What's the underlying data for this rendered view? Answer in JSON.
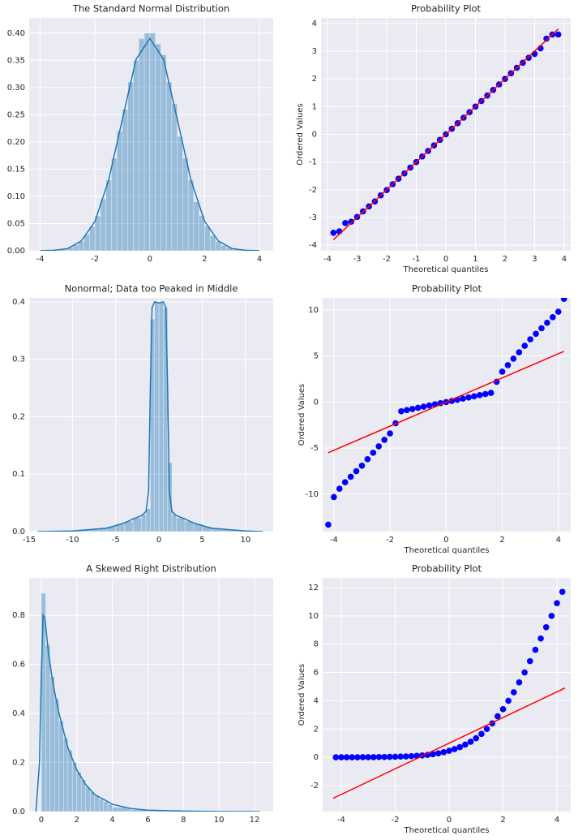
{
  "chart_data": [
    {
      "type": "histogram",
      "title": "The Standard Normal Distribution",
      "bins": [
        -3.6,
        -3.4,
        -3.2,
        -3.0,
        -2.8,
        -2.6,
        -2.4,
        -2.2,
        -2.0,
        -1.8,
        -1.6,
        -1.4,
        -1.2,
        -1.0,
        -0.8,
        -0.6,
        -0.4,
        -0.2,
        0,
        0.2,
        0.4,
        0.6,
        0.8,
        1.0,
        1.2,
        1.4,
        1.6,
        1.8,
        2.0,
        2.2,
        2.4,
        2.6,
        2.8,
        3.0,
        3.2,
        3.4,
        3.6
      ],
      "values": [
        0.001,
        0.002,
        0.003,
        0.006,
        0.011,
        0.017,
        0.03,
        0.045,
        0.064,
        0.095,
        0.13,
        0.17,
        0.22,
        0.26,
        0.31,
        0.35,
        0.39,
        0.4,
        0.4,
        0.38,
        0.36,
        0.31,
        0.27,
        0.21,
        0.17,
        0.13,
        0.09,
        0.065,
        0.045,
        0.028,
        0.017,
        0.01,
        0.006,
        0.003,
        0.002,
        0.001
      ],
      "color": "#1f77b4",
      "kde": {
        "x": [
          -4,
          -3.5,
          -3,
          -2.5,
          -2,
          -1.5,
          -1,
          -0.5,
          0,
          0.5,
          1,
          1.5,
          2,
          2.5,
          3,
          3.5,
          4
        ],
        "values": [
          0.0001,
          0.0009,
          0.004,
          0.018,
          0.054,
          0.13,
          0.242,
          0.352,
          0.39,
          0.352,
          0.242,
          0.13,
          0.054,
          0.018,
          0.004,
          0.0009,
          0.0001
        ],
        "color": "#1f77b4"
      },
      "xlim": [
        -4.4,
        4.5
      ],
      "ylim": [
        0,
        0.428
      ],
      "xticks": [
        -4,
        -2,
        0,
        2,
        4
      ],
      "yticks": [
        {
          "value": 0,
          "label": "0.00"
        },
        {
          "value": 0.05,
          "label": "0.05"
        },
        {
          "value": 0.1,
          "label": "0.10"
        },
        {
          "value": 0.15,
          "label": "0.15"
        },
        {
          "value": 0.2,
          "label": "0.20"
        },
        {
          "value": 0.25,
          "label": "0.25"
        },
        {
          "value": 0.3,
          "label": "0.30"
        },
        {
          "value": 0.35,
          "label": "0.35"
        },
        {
          "value": 0.4,
          "label": "0.40"
        }
      ],
      "grid": true
    },
    {
      "type": "scatter",
      "title": "Probability Plot",
      "xlabel": "Theoretical quantiles",
      "ylabel": "Ordered Values",
      "x": [
        -3.8,
        -3.6,
        -3.4,
        -3.2,
        -3.0,
        -2.8,
        -2.6,
        -2.4,
        -2.2,
        -2.0,
        -1.8,
        -1.6,
        -1.4,
        -1.2,
        -1.0,
        -0.8,
        -0.6,
        -0.4,
        -0.2,
        0,
        0.2,
        0.4,
        0.6,
        0.8,
        1.0,
        1.2,
        1.4,
        1.6,
        1.8,
        2.0,
        2.2,
        2.4,
        2.6,
        2.8,
        3.0,
        3.2,
        3.4,
        3.6,
        3.8
      ],
      "values": [
        -3.55,
        -3.5,
        -3.2,
        -3.15,
        -2.98,
        -2.78,
        -2.6,
        -2.42,
        -2.2,
        -2.01,
        -1.8,
        -1.6,
        -1.41,
        -1.2,
        -1.0,
        -0.8,
        -0.6,
        -0.4,
        -0.2,
        0,
        0.2,
        0.4,
        0.6,
        0.8,
        1.0,
        1.2,
        1.4,
        1.6,
        1.8,
        2.0,
        2.2,
        2.4,
        2.58,
        2.76,
        2.9,
        3.1,
        3.45,
        3.6,
        3.6
      ],
      "color": "#0000ff",
      "fit_line": {
        "x": [
          -3.8,
          3.8
        ],
        "values": [
          -3.8,
          3.8
        ],
        "color": "#ff0000"
      },
      "xlim": [
        -4.22,
        4.22
      ],
      "ylim": [
        -4.2,
        4.2
      ],
      "xticks": [
        -4,
        -3,
        -2,
        -1,
        0,
        1,
        2,
        3,
        4
      ],
      "yticks": [
        -4,
        -3,
        -2,
        -1,
        0,
        1,
        2,
        3,
        4
      ],
      "grid": true
    },
    {
      "type": "histogram",
      "title": "Nonormal; Data too Peaked in Middle",
      "bins": [
        -14,
        -13,
        -12,
        -11,
        -10,
        -9,
        -8,
        -7,
        -6,
        -5,
        -4,
        -3,
        -2,
        -1.5,
        -1,
        -0.5,
        0,
        0.5,
        1,
        1.5,
        2,
        3,
        4,
        5,
        6,
        7,
        8,
        9,
        10,
        11,
        12
      ],
      "values": [
        0.0005,
        0.0005,
        0.001,
        0.001,
        0.002,
        0.003,
        0.004,
        0.006,
        0.009,
        0.013,
        0.018,
        0.024,
        0.03,
        0.04,
        0.37,
        0.4,
        0.4,
        0.39,
        0.12,
        0.03,
        0.024,
        0.018,
        0.013,
        0.009,
        0.006,
        0.004,
        0.003,
        0.002,
        0.001,
        0.0005
      ],
      "color": "#1f77b4",
      "kde": {
        "x": [
          -14,
          -10,
          -6,
          -4,
          -3,
          -2,
          -1.5,
          -1.2,
          -1,
          -0.8,
          -0.5,
          0,
          0.5,
          0.8,
          1,
          1.2,
          1.5,
          2,
          3,
          4,
          6,
          10,
          12
        ],
        "values": [
          0,
          0.001,
          0.006,
          0.015,
          0.022,
          0.028,
          0.035,
          0.07,
          0.25,
          0.39,
          0.4,
          0.398,
          0.4,
          0.39,
          0.25,
          0.07,
          0.035,
          0.028,
          0.022,
          0.015,
          0.006,
          0.001,
          0
        ],
        "color": "#1f77b4"
      },
      "xlim": [
        -15,
        13.2
      ],
      "ylim": [
        0,
        0.407
      ],
      "xticks": [
        -15,
        -10,
        -5,
        0,
        5,
        10
      ],
      "yticks": [
        {
          "value": 0,
          "label": "0.0"
        },
        {
          "value": 0.1,
          "label": "0.1"
        },
        {
          "value": 0.2,
          "label": "0.2"
        },
        {
          "value": 0.3,
          "label": "0.3"
        },
        {
          "value": 0.4,
          "label": "0.4"
        }
      ],
      "grid": true
    },
    {
      "type": "scatter",
      "title": "Probability Plot",
      "xlabel": "Theoretical quantiles",
      "ylabel": "Ordered Values",
      "x": [
        -4.2,
        -4.0,
        -3.8,
        -3.6,
        -3.4,
        -3.2,
        -3.0,
        -2.8,
        -2.6,
        -2.4,
        -2.2,
        -2.0,
        -1.8,
        -1.6,
        -1.4,
        -1.2,
        -1.0,
        -0.8,
        -0.6,
        -0.4,
        -0.2,
        0,
        0.2,
        0.4,
        0.6,
        0.8,
        1.0,
        1.2,
        1.4,
        1.6,
        1.8,
        2.0,
        2.2,
        2.4,
        2.6,
        2.8,
        3.0,
        3.2,
        3.4,
        3.6,
        3.8,
        4.0,
        4.2
      ],
      "values": [
        -13.3,
        -10.3,
        -9.4,
        -8.7,
        -8.1,
        -7.5,
        -6.9,
        -6.2,
        -5.5,
        -4.8,
        -4.1,
        -3.4,
        -2.3,
        -1.0,
        -0.87,
        -0.75,
        -0.62,
        -0.5,
        -0.37,
        -0.25,
        -0.12,
        0,
        0.12,
        0.25,
        0.37,
        0.5,
        0.62,
        0.75,
        0.87,
        1.0,
        2.2,
        3.3,
        4.0,
        4.7,
        5.4,
        6.1,
        6.8,
        7.4,
        8.0,
        8.6,
        9.2,
        9.8,
        11.2
      ],
      "color": "#0000ff",
      "fit_line": {
        "x": [
          -4.2,
          4.2
        ],
        "values": [
          -5.5,
          5.5
        ],
        "color": "#ff0000"
      },
      "xlim": [
        -4.4,
        4.44
      ],
      "ylim": [
        -14.05,
        11.3
      ],
      "xticks": [
        -4,
        -2,
        0,
        2,
        4
      ],
      "yticks": [
        -10,
        -5,
        0,
        5,
        10
      ],
      "grid": true
    },
    {
      "type": "histogram",
      "title": "A Skewed Right Distribution",
      "bins": [
        0,
        0.25,
        0.5,
        0.75,
        1,
        1.25,
        1.5,
        1.75,
        2,
        2.25,
        2.5,
        2.75,
        3,
        3.25,
        3.5,
        3.75,
        4,
        5,
        6,
        7,
        8,
        9,
        10,
        11,
        12
      ],
      "values": [
        0.89,
        0.68,
        0.55,
        0.46,
        0.37,
        0.3,
        0.25,
        0.2,
        0.16,
        0.13,
        0.1,
        0.08,
        0.065,
        0.05,
        0.04,
        0.03,
        0.018,
        0.008,
        0.004,
        0.002,
        0.001,
        0.0006,
        0.0003,
        0.0002
      ],
      "color": "#1f77b4",
      "kde": {
        "x": [
          -0.3,
          -0.1,
          0,
          0.1,
          0.2,
          0.4,
          0.6,
          0.8,
          1,
          1.5,
          2,
          2.5,
          3,
          4,
          5,
          6,
          8,
          10,
          12.3
        ],
        "values": [
          0,
          0.2,
          0.55,
          0.8,
          0.79,
          0.65,
          0.55,
          0.47,
          0.4,
          0.26,
          0.17,
          0.11,
          0.07,
          0.03,
          0.013,
          0.006,
          0.002,
          0.0005,
          0
        ],
        "color": "#1f77b4"
      },
      "xlim": [
        -0.68,
        13.05
      ],
      "ylim": [
        0,
        0.953
      ],
      "xticks": [
        0,
        2,
        4,
        6,
        8,
        10,
        12
      ],
      "yticks": [
        {
          "value": 0,
          "label": "0.0"
        },
        {
          "value": 0.2,
          "label": "0.2"
        },
        {
          "value": 0.4,
          "label": "0.4"
        },
        {
          "value": 0.6,
          "label": "0.6"
        },
        {
          "value": 0.8,
          "label": "0.8"
        }
      ],
      "grid": true
    },
    {
      "type": "scatter",
      "title": "Probability Plot",
      "xlabel": "Theoretical quantiles",
      "ylabel": "Ordered Values",
      "x": [
        -4.2,
        -4.0,
        -3.8,
        -3.6,
        -3.4,
        -3.2,
        -3.0,
        -2.8,
        -2.6,
        -2.4,
        -2.2,
        -2.0,
        -1.8,
        -1.6,
        -1.4,
        -1.2,
        -1.0,
        -0.8,
        -0.6,
        -0.4,
        -0.2,
        0,
        0.2,
        0.4,
        0.6,
        0.8,
        1.0,
        1.2,
        1.4,
        1.6,
        1.8,
        2.0,
        2.2,
        2.4,
        2.6,
        2.8,
        3.0,
        3.2,
        3.4,
        3.6,
        3.8,
        4.0,
        4.2
      ],
      "values": [
        0,
        0,
        0,
        0,
        0,
        0.01,
        0.01,
        0.01,
        0.02,
        0.02,
        0.03,
        0.04,
        0.05,
        0.06,
        0.08,
        0.1,
        0.13,
        0.17,
        0.22,
        0.28,
        0.36,
        0.46,
        0.58,
        0.72,
        0.9,
        1.1,
        1.35,
        1.65,
        2.0,
        2.4,
        2.9,
        3.4,
        4.0,
        4.6,
        5.3,
        6.0,
        6.8,
        7.6,
        8.4,
        9.2,
        10.0,
        10.9,
        11.7
      ],
      "color": "#0000ff",
      "fit_line": {
        "x": [
          -4.3,
          4.3
        ],
        "values": [
          -2.9,
          4.9
        ],
        "color": "#ff0000"
      },
      "xlim": [
        -4.69,
        4.51
      ],
      "ylim": [
        -3.84,
        12.69
      ],
      "xticks": [
        -4,
        -2,
        0,
        2,
        4
      ],
      "yticks": [
        -2,
        0,
        2,
        4,
        6,
        8,
        10,
        12
      ],
      "grid": true
    }
  ]
}
